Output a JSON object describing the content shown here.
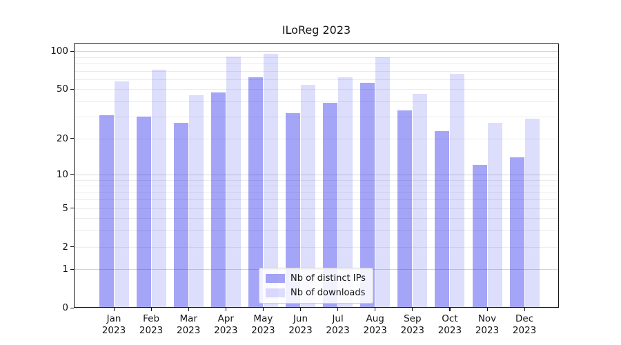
{
  "title": "ILoReg 2023",
  "chart_data": {
    "type": "bar",
    "title": "ILoReg 2023",
    "months": [
      "Jan",
      "Feb",
      "Mar",
      "Apr",
      "May",
      "Jun",
      "Jul",
      "Aug",
      "Sep",
      "Oct",
      "Nov",
      "Dec"
    ],
    "year_line": "2023",
    "categories": [
      "Jan 2023",
      "Feb 2023",
      "Mar 2023",
      "Apr 2023",
      "May 2023",
      "Jun 2023",
      "Jul 2023",
      "Aug 2023",
      "Sep 2023",
      "Oct 2023",
      "Nov 2023",
      "Dec 2023"
    ],
    "series": [
      {
        "name": "Nb of distinct IPs",
        "color": "rgba(30,30,235,0.40)",
        "hex_on_white": "#a5a5f4",
        "values": [
          31,
          30,
          27,
          47,
          62,
          32,
          39,
          56,
          34,
          23,
          12,
          14
        ]
      },
      {
        "name": "Nb of downloads",
        "color": "rgba(30,30,235,0.15)",
        "hex_on_white": "#dcdcfa",
        "values": [
          58,
          71,
          45,
          91,
          95,
          54,
          62,
          90,
          46,
          66,
          27,
          29
        ]
      }
    ],
    "yscale": "log1p",
    "y_ticks": [
      0,
      1,
      2,
      5,
      10,
      20,
      50,
      100
    ],
    "ylim": [
      0,
      115
    ],
    "grid": "both",
    "grid_major_color": "#d4d4d4",
    "grid_minor_color": "#ececec",
    "spine_color": "#141414",
    "legend_position": "lower center"
  }
}
